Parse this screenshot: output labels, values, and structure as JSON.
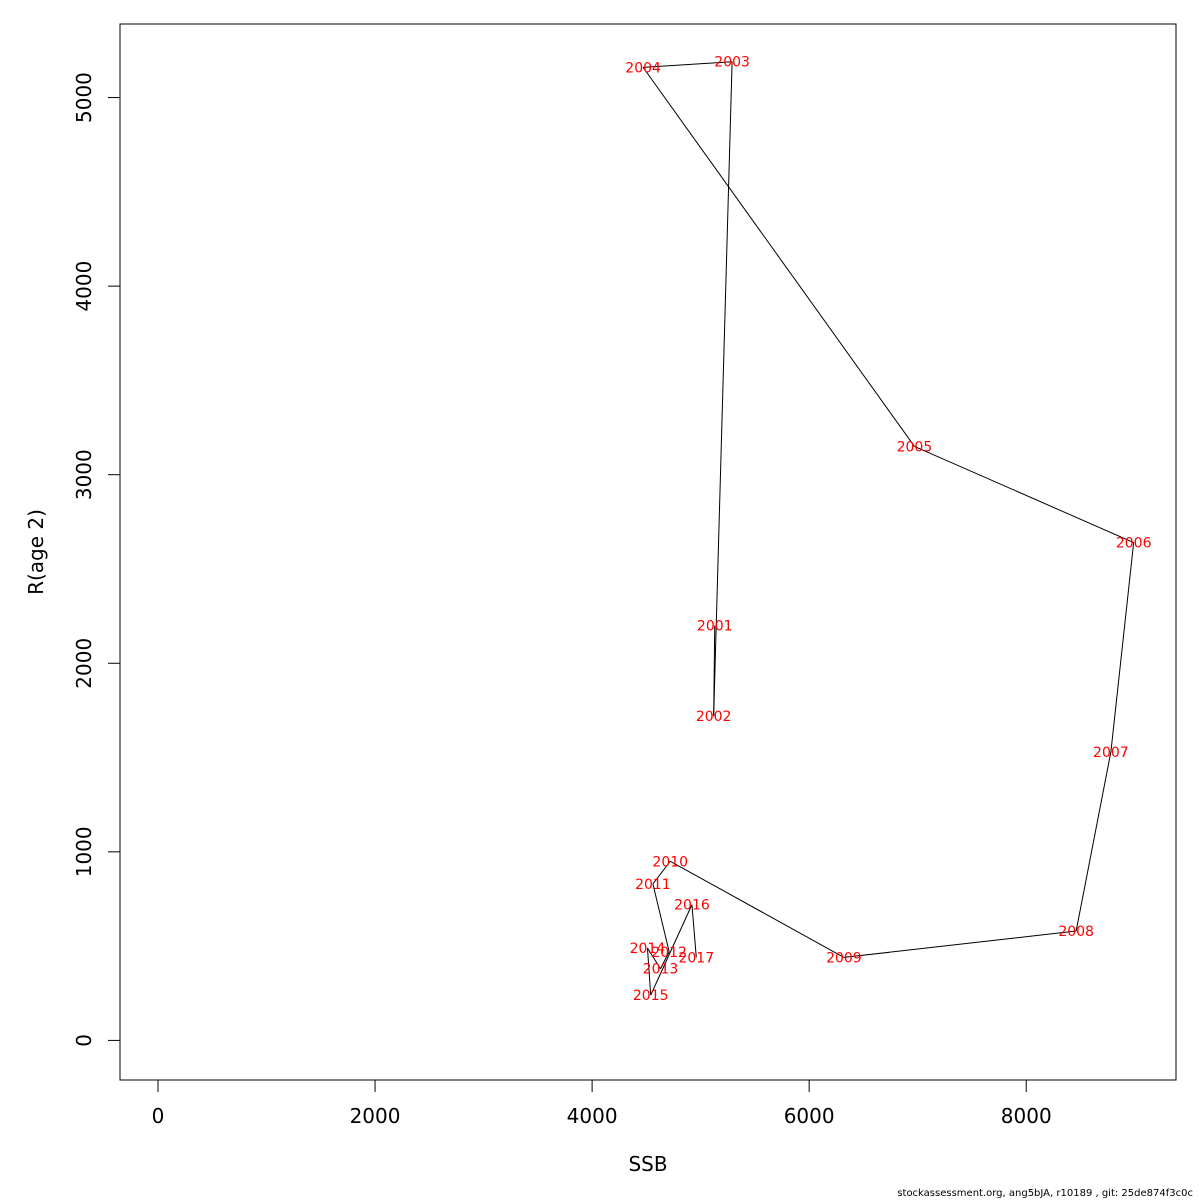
{
  "chart_data": {
    "type": "line",
    "xlabel": "SSB",
    "ylabel": "R(age 2)",
    "xlim": [
      -350,
      9380
    ],
    "ylim": [
      -210,
      5390
    ],
    "x_ticks": [
      0,
      2000,
      4000,
      6000,
      8000
    ],
    "y_ticks": [
      0,
      1000,
      2000,
      3000,
      4000,
      5000
    ],
    "label_color": "#ff0000",
    "line_color": "#000000",
    "grid": false,
    "series": [
      {
        "points": [
          {
            "label": "2001",
            "x": 5130,
            "y": 2200
          },
          {
            "label": "2002",
            "x": 5120,
            "y": 1720
          },
          {
            "label": "2003",
            "x": 5290,
            "y": 5190
          },
          {
            "label": "2004",
            "x": 4470,
            "y": 5160
          },
          {
            "label": "2005",
            "x": 6970,
            "y": 3150
          },
          {
            "label": "2006",
            "x": 8990,
            "y": 2640
          },
          {
            "label": "2007",
            "x": 8780,
            "y": 1530
          },
          {
            "label": "2008",
            "x": 8460,
            "y": 580
          },
          {
            "label": "2009",
            "x": 6320,
            "y": 440
          },
          {
            "label": "2010",
            "x": 4720,
            "y": 950
          },
          {
            "label": "2011",
            "x": 4560,
            "y": 830
          },
          {
            "label": "2012",
            "x": 4710,
            "y": 470
          },
          {
            "label": "2013",
            "x": 4630,
            "y": 380
          },
          {
            "label": "2014",
            "x": 4510,
            "y": 490
          },
          {
            "label": "2015",
            "x": 4540,
            "y": 240
          },
          {
            "label": "2016",
            "x": 4920,
            "y": 720
          },
          {
            "label": "2017",
            "x": 4960,
            "y": 440
          }
        ]
      }
    ]
  },
  "footer": {
    "text": "stockassessment.org, ang5bJA, r10189 , git: 25de874f3c0c"
  }
}
